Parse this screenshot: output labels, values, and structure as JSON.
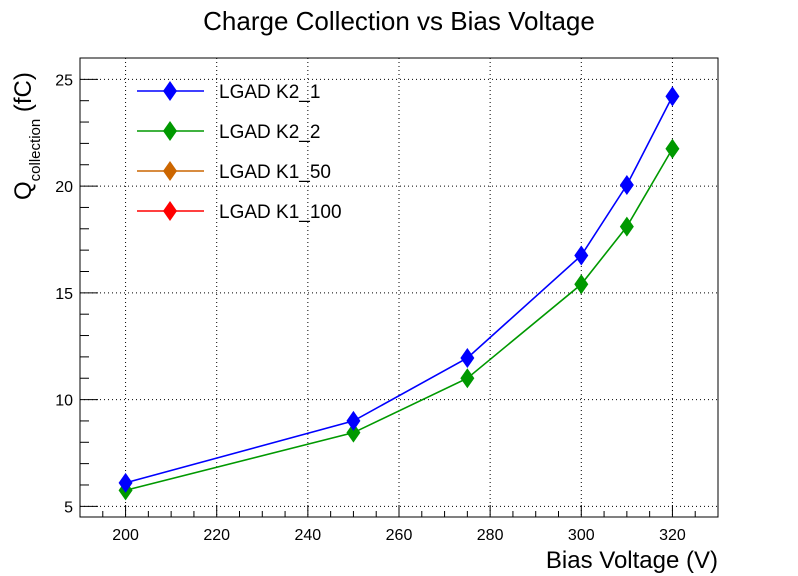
{
  "chart_data": {
    "type": "line",
    "title": "Charge Collection vs Bias Voltage",
    "xlabel": "Bias Voltage (V)",
    "ylabel_main": "Q",
    "ylabel_sub": "collection",
    "ylabel_unit": " (fC)",
    "xlim": [
      190,
      330
    ],
    "ylim": [
      4.5,
      26
    ],
    "x_ticks": [
      200,
      220,
      240,
      260,
      280,
      300,
      320
    ],
    "y_ticks": [
      5,
      10,
      15,
      20,
      25
    ],
    "x_tick_labels": [
      "200",
      "220",
      "240",
      "260",
      "280",
      "300",
      "320"
    ],
    "y_tick_labels": [
      "5",
      "10",
      "15",
      "20",
      "25"
    ],
    "grid": true,
    "legend_position": "top-left",
    "series": [
      {
        "name": "LGAD K2_1",
        "color": "#0000ff",
        "x": [
          200,
          250,
          275,
          300,
          310,
          320
        ],
        "values": [
          6.1,
          9.0,
          11.95,
          16.75,
          20.05,
          24.2
        ]
      },
      {
        "name": "LGAD K2_2",
        "color": "#009900",
        "x": [
          200,
          250,
          275,
          300,
          310,
          320
        ],
        "values": [
          5.75,
          8.45,
          11.0,
          15.4,
          18.1,
          21.75
        ]
      },
      {
        "name": "LGAD K1_50",
        "color": "#cc6600",
        "x": [],
        "values": []
      },
      {
        "name": "LGAD K1_100",
        "color": "#ff0000",
        "x": [],
        "values": []
      }
    ]
  }
}
